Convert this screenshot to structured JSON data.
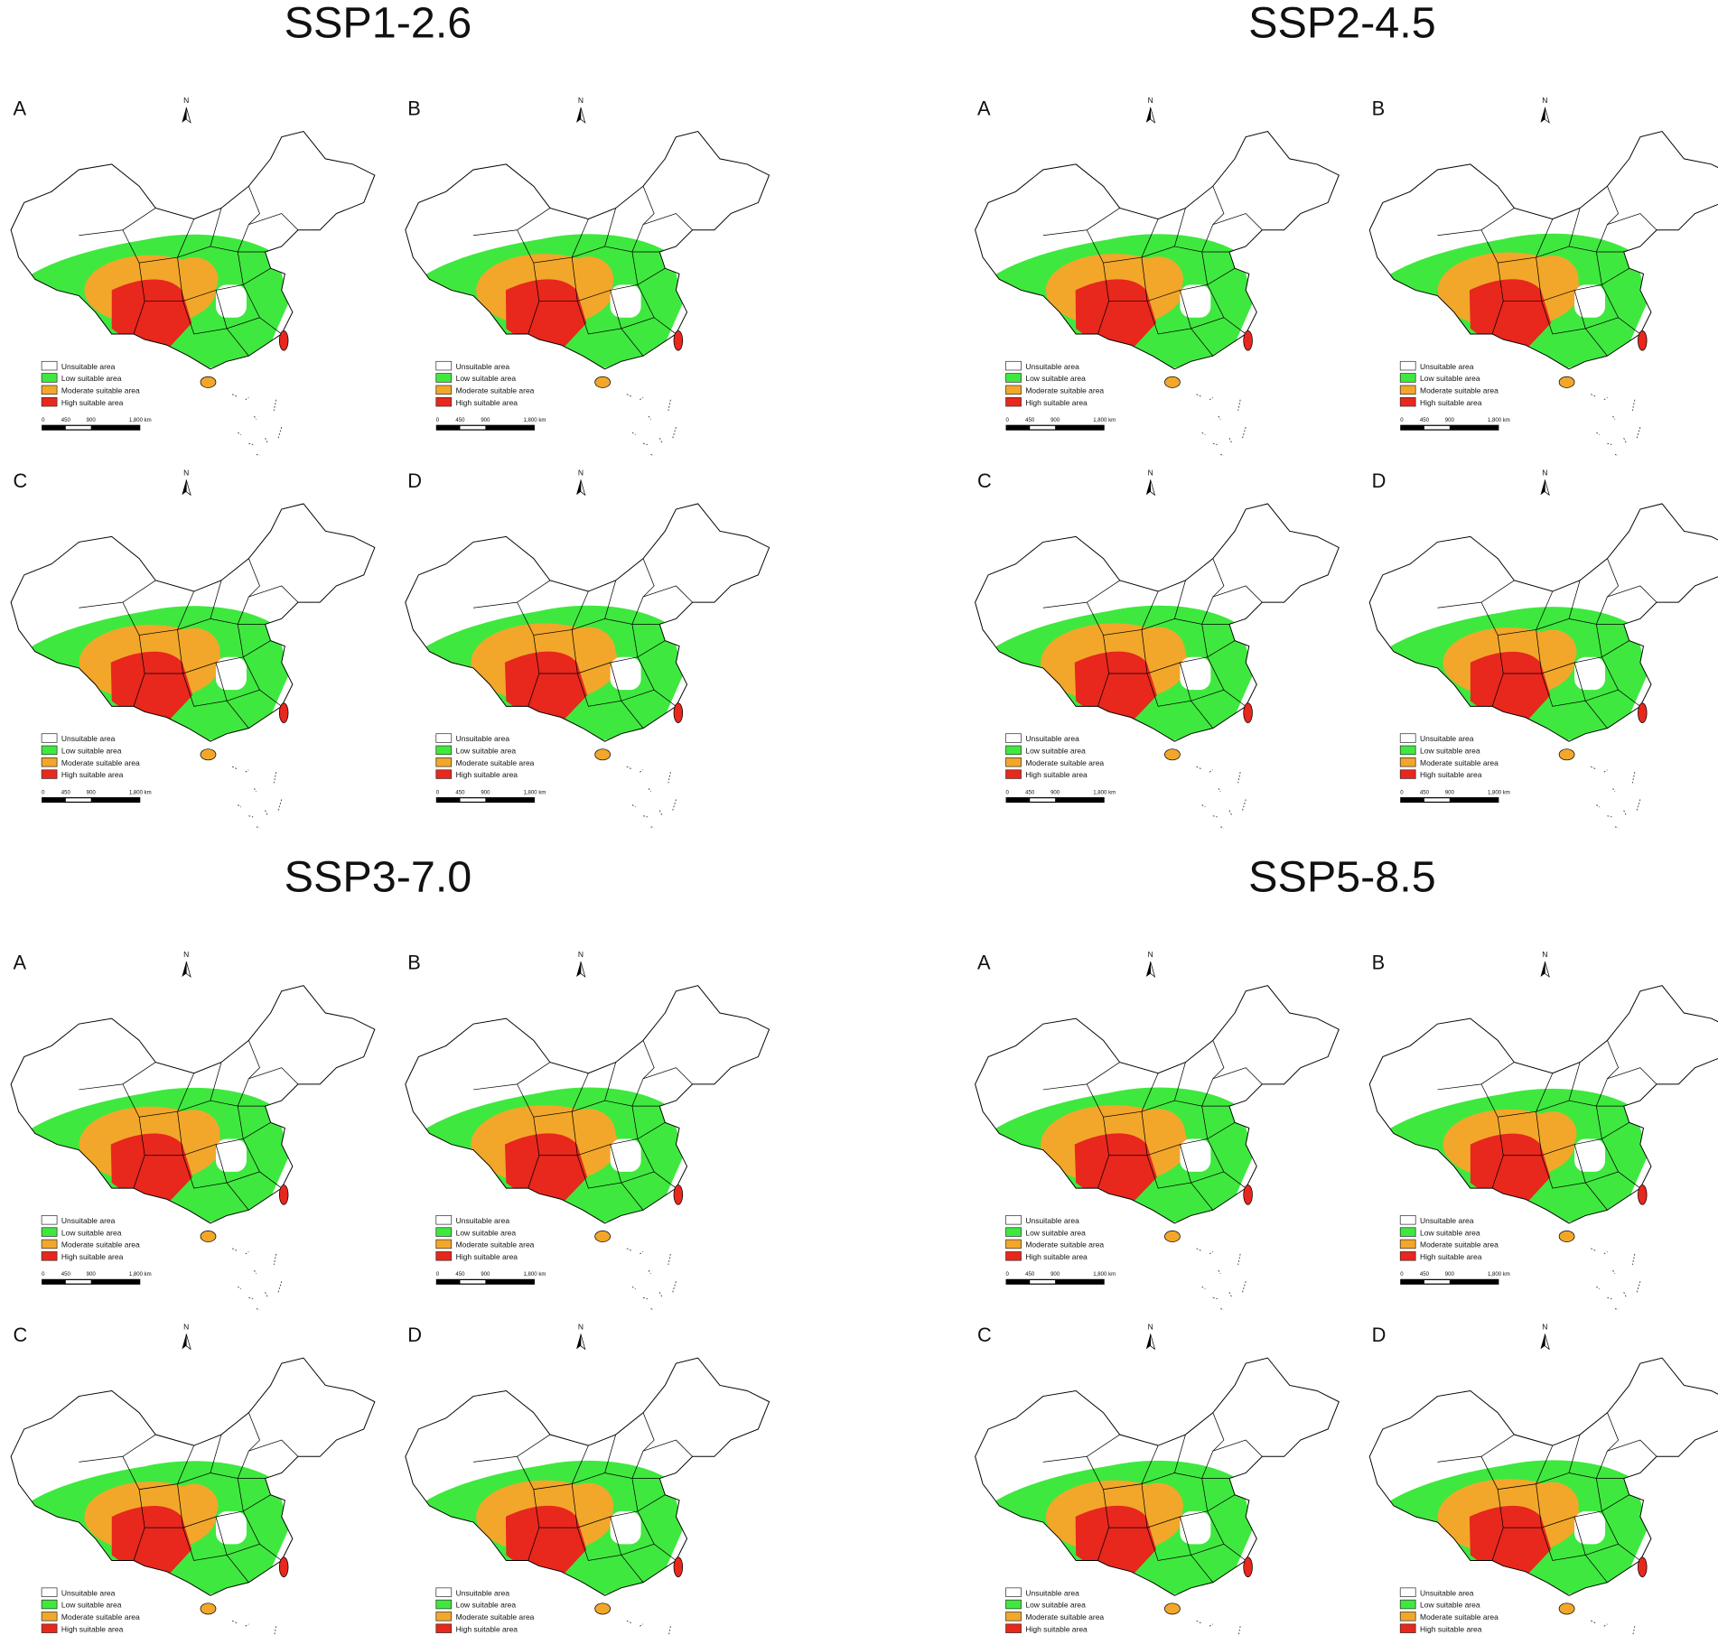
{
  "figure": {
    "groups": [
      {
        "title": "SSP1-2.6",
        "panels": [
          {
            "label": "A"
          },
          {
            "label": "B"
          },
          {
            "label": "C"
          },
          {
            "label": "D"
          }
        ]
      },
      {
        "title": "SSP2-4.5",
        "panels": [
          {
            "label": "A"
          },
          {
            "label": "B"
          },
          {
            "label": "C"
          },
          {
            "label": "D"
          }
        ]
      },
      {
        "title": "SSP3-7.0",
        "panels": [
          {
            "label": "A"
          },
          {
            "label": "B"
          },
          {
            "label": "C"
          },
          {
            "label": "D"
          }
        ]
      },
      {
        "title": "SSP5-8.5",
        "panels": [
          {
            "label": "A"
          },
          {
            "label": "B"
          },
          {
            "label": "C"
          },
          {
            "label": "D"
          }
        ]
      }
    ],
    "north_label": "N",
    "legend": [
      {
        "label": "Unsuitable area",
        "color": "#ffffff"
      },
      {
        "label": "Low suitable area",
        "color": "#3fe83f"
      },
      {
        "label": "Moderate suitable area",
        "color": "#f2a72a"
      },
      {
        "label": "High suitable area",
        "color": "#e8271d"
      }
    ],
    "scale_bar": [
      "0",
      "450",
      "900",
      "1,800 km"
    ]
  }
}
